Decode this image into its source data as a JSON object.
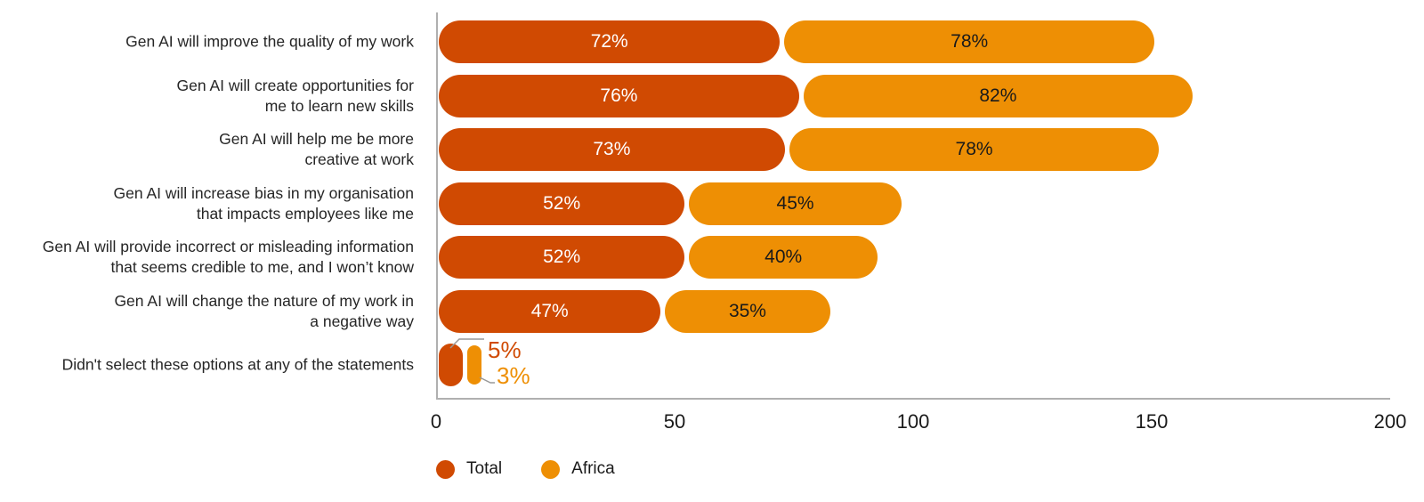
{
  "chart_data": {
    "type": "bar",
    "orientation": "horizontal",
    "stacked": true,
    "title": "",
    "xlabel": "",
    "ylabel": "",
    "xlim": [
      0,
      200
    ],
    "xticks": [
      "0",
      "50",
      "100",
      "150",
      "200"
    ],
    "grid": false,
    "legend_position": "bottom-left",
    "categories": [
      "Gen AI will improve the quality of my work",
      "Gen AI will create opportunities for\nme to learn new skills",
      "Gen AI will help me be more\ncreative at work",
      "Gen AI will increase bias in my organisation\nthat impacts employees like me",
      "Gen AI will provide incorrect or misleading information\nthat seems credible to me, and I won’t know",
      "Gen AI will change the nature of my work in\na negative way",
      "Didn't select these options at any of the statements"
    ],
    "series": [
      {
        "name": "Total",
        "color": "#D04A02",
        "label_color": "#FFFFFF",
        "values": [
          72,
          76,
          73,
          52,
          52,
          47,
          5
        ],
        "labels": [
          "72%",
          "76%",
          "73%",
          "52%",
          "52%",
          "47%",
          "5%"
        ]
      },
      {
        "name": "Africa",
        "color": "#EE8F04",
        "label_color": "#1A1A1A",
        "values": [
          78,
          82,
          78,
          45,
          40,
          35,
          3
        ],
        "labels": [
          "78%",
          "82%",
          "78%",
          "45%",
          "40%",
          "35%",
          "3%"
        ]
      }
    ],
    "value_suffix": "%",
    "callout_row_index": 6,
    "callout_labels": [
      {
        "series": "Total",
        "text": "5%",
        "color": "#D04A02"
      },
      {
        "series": "Africa",
        "text": "3%",
        "color": "#EE8F04"
      }
    ],
    "axis_color": "#B0B0B0",
    "leader_line_color": "#999999"
  }
}
